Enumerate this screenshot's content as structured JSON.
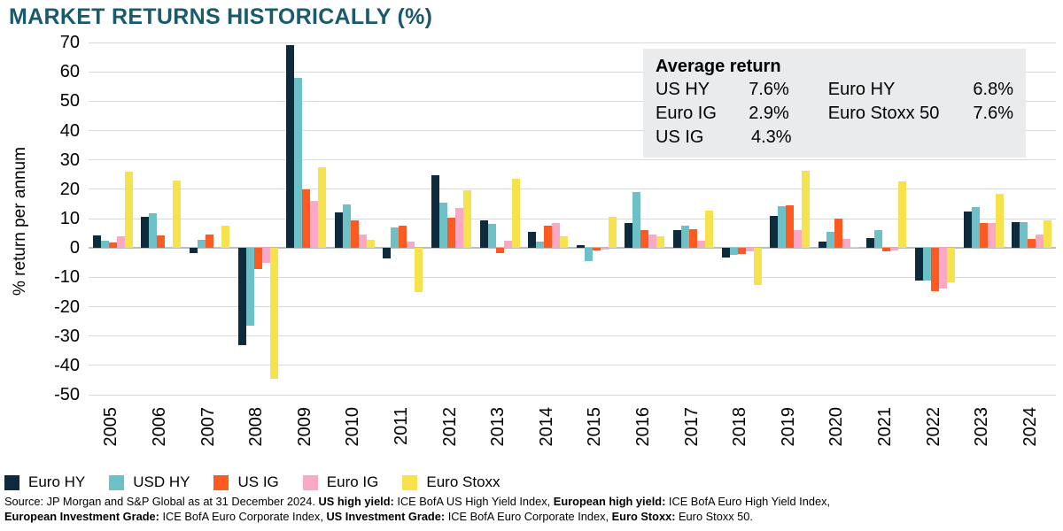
{
  "title": "MARKET RETURNS HISTORICALLY (%)",
  "title_color": "#1a5a6d",
  "y_axis_label": "% return per annum",
  "average_box": {
    "title": "Average return",
    "rows": [
      {
        "label1": "US HY",
        "value1": "7.6%",
        "label2": "Euro HY",
        "value2": "6.8%"
      },
      {
        "label1": "Euro IG",
        "value1": "2.9%",
        "label2": "Euro Stoxx 50",
        "value2": "7.6%"
      },
      {
        "label1": "US IG",
        "value1": "4.3%",
        "label2": "",
        "value2": ""
      }
    ]
  },
  "chart_data": {
    "type": "bar",
    "title": "MARKET RETURNS HISTORICALLY (%)",
    "xlabel": "",
    "ylabel": "% return per annum",
    "ylim": [
      -50,
      70
    ],
    "ytick_step": 10,
    "grid": true,
    "legend_position": "bottom",
    "categories": [
      "2005",
      "2006",
      "2007",
      "2008",
      "2009",
      "2010",
      "2011",
      "2012",
      "2013",
      "2014",
      "2015",
      "2016",
      "2017",
      "2018",
      "2019",
      "2020",
      "2021",
      "2022",
      "2023",
      "2024"
    ],
    "series": [
      {
        "name": "Euro HY",
        "color": "#0e2b3d",
        "values": [
          4.3,
          10.5,
          -1.7,
          -33,
          69,
          12,
          -3.5,
          24.8,
          9.4,
          5.4,
          1.0,
          8.6,
          6.2,
          -3.3,
          11.0,
          2.2,
          3.3,
          -11.2,
          12.4,
          8.7
        ]
      },
      {
        "name": "USD HY",
        "color": "#6cc0c6",
        "values": [
          2.6,
          11.8,
          2.8,
          -26.5,
          58,
          14.7,
          7.0,
          15.3,
          8.2,
          2.3,
          -4.6,
          18.9,
          7.5,
          -2.4,
          14.3,
          5.5,
          6.0,
          -11.0,
          13.8,
          8.9
        ]
      },
      {
        "name": "US IG",
        "color": "#fc5a20",
        "values": [
          1.8,
          4.4,
          4.6,
          -7.3,
          19.8,
          9.4,
          7.7,
          10.4,
          -1.8,
          7.5,
          -0.8,
          6.0,
          6.4,
          -2.2,
          14.5,
          10.0,
          -1.2,
          -14.8,
          8.5,
          3.0
        ]
      },
      {
        "name": "Euro IG",
        "color": "#f9a9c6",
        "values": [
          4.1,
          0.5,
          0.4,
          -5.0,
          16.0,
          4.7,
          2.1,
          13.5,
          2.4,
          8.4,
          -0.6,
          4.7,
          2.6,
          -1.2,
          6.2,
          3.0,
          -0.9,
          -13.9,
          8.5,
          4.5
        ]
      },
      {
        "name": "Euro Stoxx",
        "color": "#f5e24c",
        "values": [
          26,
          23,
          7.5,
          -44.5,
          27.5,
          2.7,
          -15,
          19.5,
          23.5,
          4.0,
          10.5,
          4.0,
          12.7,
          -12.7,
          26.2,
          0.5,
          22.7,
          -11.8,
          18.4,
          9.4
        ]
      }
    ]
  },
  "footer": {
    "lines": [
      [
        {
          "text": "Source: JP Morgan and S&P Global as at 31 December 2024. ",
          "bold": false
        },
        {
          "text": "US high yield:",
          "bold": true
        },
        {
          "text": " ICE BofA US High Yield Index, ",
          "bold": false
        },
        {
          "text": "European high yield:",
          "bold": true
        },
        {
          "text": " ICE BofA Euro High Yield Index,",
          "bold": false
        }
      ],
      [
        {
          "text": "European Investment Grade:",
          "bold": true
        },
        {
          "text": " ICE BofA Euro Corporate Index, ",
          "bold": false
        },
        {
          "text": "US Investment Grade:",
          "bold": true
        },
        {
          "text": " ICE BofA Euro Corporate Index, ",
          "bold": false
        },
        {
          "text": "Euro Stoxx:",
          "bold": true
        },
        {
          "text": " Euro Stoxx 50.",
          "bold": false
        }
      ]
    ]
  }
}
